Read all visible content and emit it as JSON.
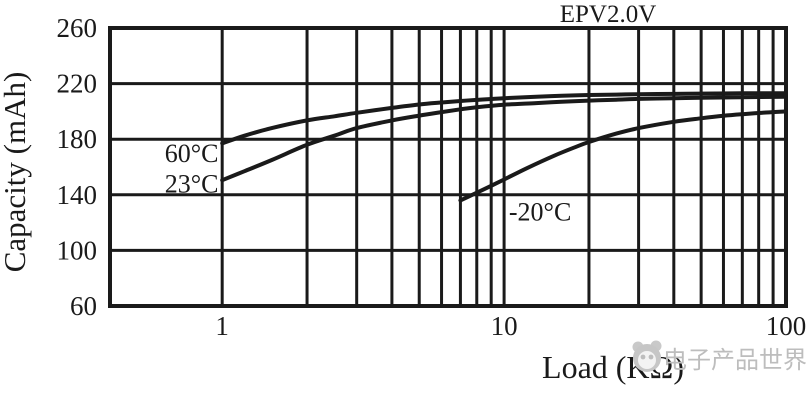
{
  "title": "EPV2.0V",
  "watermark": {
    "logo": "eepw-panda-logo-icon",
    "text": "电子产品世界",
    "color": "#bdbdbd"
  },
  "chart_data": {
    "type": "line",
    "title": "EPV2.0V",
    "xlabel": "Load (KΩ)",
    "ylabel": "Capacity (mAh)",
    "x_scale": "log",
    "xlim": [
      0.4,
      100
    ],
    "ylim": [
      60,
      260
    ],
    "yticks": [
      60,
      100,
      140,
      180,
      220,
      260
    ],
    "xticks": [
      1,
      10,
      100
    ],
    "minor_x_gridlines": [
      2,
      3,
      4,
      5,
      6,
      7,
      8,
      9,
      20,
      30,
      40,
      50,
      60,
      70,
      80,
      90
    ],
    "grid": true,
    "line_color": "#1a1a1a",
    "legend_position": "labels-on-curves",
    "series": [
      {
        "name": "60°C",
        "label": {
          "text": "60°C",
          "x": 0.97,
          "y": 170,
          "anchor": "end"
        },
        "points": [
          [
            1,
            177
          ],
          [
            1.2,
            182.5
          ],
          [
            1.5,
            188
          ],
          [
            2,
            193.5
          ],
          [
            2.5,
            196.5
          ],
          [
            3,
            199
          ],
          [
            4,
            202.5
          ],
          [
            5,
            205
          ],
          [
            6,
            206.4
          ],
          [
            7,
            207.5
          ],
          [
            8,
            208.3
          ],
          [
            10,
            209.5
          ],
          [
            13,
            210.5
          ],
          [
            16,
            211.2
          ],
          [
            20,
            211.8
          ],
          [
            25,
            212.1
          ],
          [
            30,
            212.4
          ],
          [
            40,
            212.6
          ],
          [
            50,
            212.8
          ],
          [
            70,
            213
          ],
          [
            100,
            213
          ]
        ]
      },
      {
        "name": "23°C",
        "label": {
          "text": "23°C",
          "x": 0.97,
          "y": 148,
          "anchor": "end"
        },
        "points": [
          [
            1,
            150.5
          ],
          [
            1.2,
            157
          ],
          [
            1.5,
            165
          ],
          [
            2,
            176
          ],
          [
            2.5,
            182.5
          ],
          [
            3,
            188
          ],
          [
            4,
            193.5
          ],
          [
            5,
            197
          ],
          [
            6,
            199.5
          ],
          [
            7,
            201.5
          ],
          [
            8,
            203
          ],
          [
            10,
            204.8
          ],
          [
            13,
            206
          ],
          [
            16,
            207
          ],
          [
            20,
            207.8
          ],
          [
            25,
            208.4
          ],
          [
            30,
            209
          ],
          [
            40,
            209.5
          ],
          [
            50,
            209.8
          ],
          [
            70,
            210.2
          ],
          [
            100,
            210.5
          ]
        ]
      },
      {
        "name": "-20°C",
        "label": {
          "text": "-20°C",
          "x": 10.4,
          "y": 128,
          "anchor": "start"
        },
        "points": [
          [
            7,
            136
          ],
          [
            8,
            141.5
          ],
          [
            9,
            146.5
          ],
          [
            10,
            151
          ],
          [
            12,
            159
          ],
          [
            15,
            168
          ],
          [
            18,
            174.5
          ],
          [
            20,
            178
          ],
          [
            25,
            184
          ],
          [
            30,
            188
          ],
          [
            40,
            192.5
          ],
          [
            50,
            195
          ],
          [
            60,
            196.8
          ],
          [
            70,
            198
          ],
          [
            85,
            199.2
          ],
          [
            100,
            200
          ]
        ]
      }
    ]
  }
}
